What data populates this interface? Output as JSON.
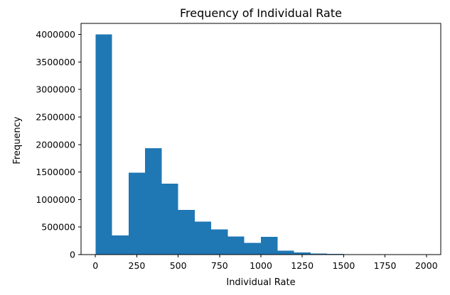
{
  "chart_data": {
    "type": "bar",
    "title": "Frequency of Individual Rate",
    "xlabel": "Individual Rate",
    "ylabel": "Frequency",
    "xlim": [
      -87,
      2087
    ],
    "ylim": [
      0,
      4200000
    ],
    "x_ticks": [
      0,
      250,
      500,
      750,
      1000,
      1250,
      1500,
      1750,
      2000
    ],
    "x_tick_labels": [
      "0",
      "250",
      "500",
      "750",
      "1000",
      "1250",
      "1500",
      "1750",
      "2000"
    ],
    "y_ticks": [
      0,
      500000,
      1000000,
      1500000,
      2000000,
      2500000,
      3000000,
      3500000,
      4000000
    ],
    "y_tick_labels": [
      "0",
      "500000",
      "1000000",
      "1500000",
      "2000000",
      "2500000",
      "3000000",
      "3500000",
      "4000000"
    ],
    "bin_edges": [
      0,
      100,
      200,
      300,
      400,
      500,
      600,
      700,
      800,
      900,
      1000,
      1100,
      1200,
      1300,
      1400,
      1500,
      1600,
      1700,
      1800,
      1900,
      2000
    ],
    "values": [
      4000000,
      350000,
      1490000,
      1930000,
      1290000,
      810000,
      600000,
      460000,
      330000,
      210000,
      320000,
      70000,
      40000,
      20000,
      15000,
      5000,
      3000,
      2000,
      1500,
      1000
    ],
    "grid": false,
    "colors": {
      "bar": "#1f77b4"
    }
  }
}
